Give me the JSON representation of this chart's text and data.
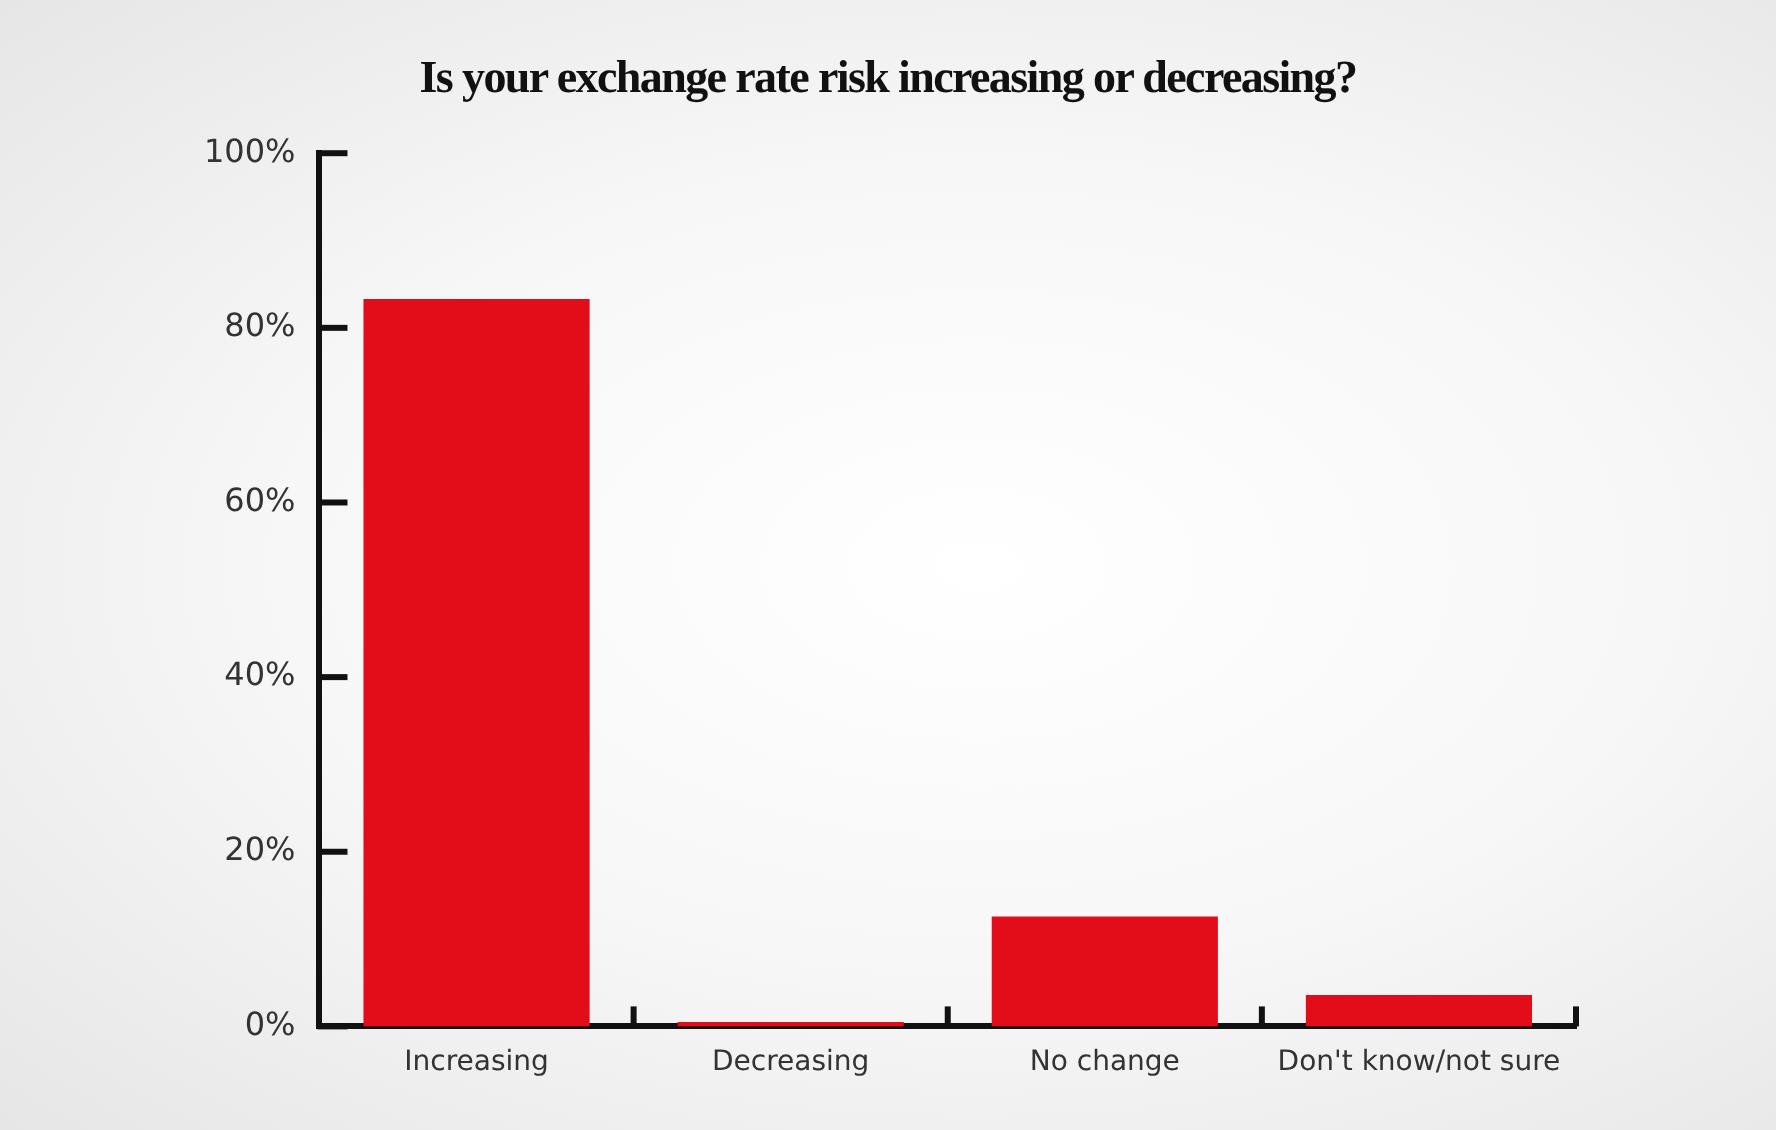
{
  "chart_data": {
    "type": "bar",
    "title": "Is your exchange rate risk increasing or decreasing?",
    "categories": [
      "Increasing",
      "Decreasing",
      "No change",
      "Don't know/not sure"
    ],
    "values": [
      83.3,
      0.5,
      12.6,
      3.6
    ],
    "color": "#e30d19",
    "ylim": [
      0,
      100
    ],
    "yticks": [
      {
        "value": 0,
        "label": "0%"
      },
      {
        "value": 20,
        "label": "20%"
      },
      {
        "value": 40,
        "label": "40%"
      },
      {
        "value": 60,
        "label": "60%"
      },
      {
        "value": 80,
        "label": "80%"
      },
      {
        "value": 100,
        "label": "100%"
      }
    ],
    "grid": false,
    "legend": false
  }
}
